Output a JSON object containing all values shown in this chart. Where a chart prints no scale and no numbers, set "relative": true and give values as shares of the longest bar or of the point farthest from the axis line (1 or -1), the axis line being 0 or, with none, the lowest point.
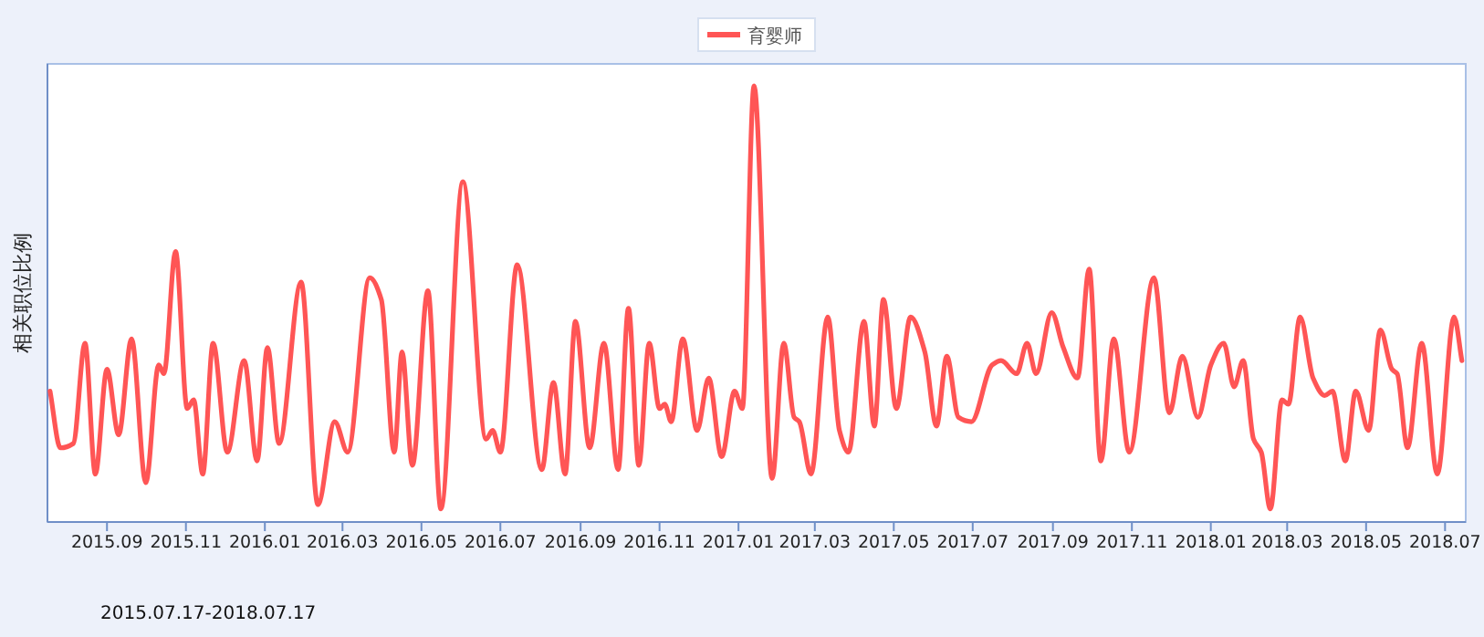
{
  "chart_data": {
    "type": "line",
    "relative": true,
    "ylabel": "相关职位比例",
    "annotations": [
      "2015.07.17-2018.07.17"
    ],
    "legend": "top",
    "marker": "none",
    "line_style": "solid",
    "grid": false,
    "xlim": [
      "2015-07-17",
      "2018-07-17"
    ],
    "xticks": [
      {
        "value": "2015-09",
        "label": "2015.09"
      },
      {
        "value": "2015-11",
        "label": "2015.11"
      },
      {
        "value": "2016-01",
        "label": "2016.01"
      },
      {
        "value": "2016-03",
        "label": "2016.03"
      },
      {
        "value": "2016-05",
        "label": "2016.05"
      },
      {
        "value": "2016-07",
        "label": "2016.07"
      },
      {
        "value": "2016-09",
        "label": "2016.09"
      },
      {
        "value": "2016-11",
        "label": "2016.11"
      },
      {
        "value": "2017-01",
        "label": "2017.01"
      },
      {
        "value": "2017-03",
        "label": "2017.03"
      },
      {
        "value": "2017-05",
        "label": "2017.05"
      },
      {
        "value": "2017-07",
        "label": "2017.07"
      },
      {
        "value": "2017-09",
        "label": "2017.09"
      },
      {
        "value": "2017-11",
        "label": "2017.11"
      },
      {
        "value": "2018-01",
        "label": "2018.01"
      },
      {
        "value": "2018-03",
        "label": "2018.03"
      },
      {
        "value": "2018-05",
        "label": "2018.05"
      },
      {
        "value": "2018-07",
        "label": "2018.07"
      }
    ],
    "series": [
      {
        "name": "育婴师",
        "color": "#ff5555",
        "x": [
          "2015-07-19",
          "2015-07-27",
          "2015-08-06",
          "2015-08-15",
          "2015-08-23",
          "2015-09-01",
          "2015-09-10",
          "2015-09-20",
          "2015-10-01",
          "2015-10-11",
          "2015-10-15",
          "2015-10-24",
          "2015-11-02",
          "2015-11-07",
          "2015-11-14",
          "2015-11-22",
          "2015-12-03",
          "2015-12-16",
          "2015-12-26",
          "2016-01-03",
          "2016-01-12",
          "2016-01-29",
          "2016-02-11",
          "2016-02-24",
          "2016-03-05",
          "2016-03-22",
          "2016-03-31",
          "2016-04-10",
          "2016-04-16",
          "2016-04-24",
          "2016-05-06",
          "2016-05-16",
          "2016-06-02",
          "2016-06-20",
          "2016-06-25",
          "2016-07-01",
          "2016-07-14",
          "2016-08-02",
          "2016-08-11",
          "2016-08-20",
          "2016-08-28",
          "2016-09-08",
          "2016-09-19",
          "2016-09-30",
          "2016-10-08",
          "2016-10-16",
          "2016-10-24",
          "2016-11-01",
          "2016-11-05",
          "2016-11-10",
          "2016-11-19",
          "2016-11-30",
          "2016-12-09",
          "2016-12-19",
          "2016-12-29",
          "2017-01-04",
          "2017-01-13",
          "2017-01-27",
          "2017-02-05",
          "2017-02-13",
          "2017-02-17",
          "2017-02-26",
          "2017-03-11",
          "2017-03-20",
          "2017-03-27",
          "2017-04-08",
          "2017-04-16",
          "2017-04-23",
          "2017-05-03",
          "2017-05-14",
          "2017-05-25",
          "2017-06-03",
          "2017-06-11",
          "2017-06-20",
          "2017-06-30",
          "2017-07-16",
          "2017-07-23",
          "2017-08-04",
          "2017-08-12",
          "2017-08-19",
          "2017-08-31",
          "2017-09-09",
          "2017-09-20",
          "2017-09-29",
          "2017-10-08",
          "2017-10-18",
          "2017-10-30",
          "2017-11-18",
          "2017-11-30",
          "2017-12-10",
          "2017-12-22",
          "2018-01-01",
          "2018-01-11",
          "2018-01-19",
          "2018-01-26",
          "2018-02-03",
          "2018-02-09",
          "2018-02-16",
          "2018-02-25",
          "2018-03-02",
          "2018-03-11",
          "2018-03-21",
          "2018-03-30",
          "2018-04-05",
          "2018-04-15",
          "2018-04-23",
          "2018-05-03",
          "2018-05-12",
          "2018-05-21",
          "2018-05-25",
          "2018-06-02",
          "2018-06-13",
          "2018-06-25",
          "2018-07-08",
          "2018-07-14"
        ],
        "values": [
          0.3,
          0.17,
          0.18,
          0.41,
          0.11,
          0.35,
          0.2,
          0.42,
          0.09,
          0.36,
          0.34,
          0.62,
          0.26,
          0.28,
          0.11,
          0.41,
          0.16,
          0.37,
          0.14,
          0.4,
          0.18,
          0.55,
          0.04,
          0.23,
          0.16,
          0.56,
          0.51,
          0.16,
          0.39,
          0.13,
          0.53,
          0.03,
          0.78,
          0.19,
          0.21,
          0.16,
          0.59,
          0.12,
          0.32,
          0.11,
          0.46,
          0.17,
          0.41,
          0.12,
          0.49,
          0.13,
          0.41,
          0.26,
          0.27,
          0.23,
          0.42,
          0.21,
          0.33,
          0.15,
          0.3,
          0.26,
          1.0,
          0.1,
          0.41,
          0.24,
          0.23,
          0.11,
          0.47,
          0.21,
          0.16,
          0.46,
          0.22,
          0.51,
          0.26,
          0.47,
          0.39,
          0.22,
          0.38,
          0.24,
          0.23,
          0.36,
          0.37,
          0.34,
          0.41,
          0.34,
          0.48,
          0.4,
          0.33,
          0.58,
          0.14,
          0.42,
          0.16,
          0.56,
          0.25,
          0.38,
          0.24,
          0.36,
          0.41,
          0.31,
          0.37,
          0.19,
          0.16,
          0.03,
          0.28,
          0.27,
          0.47,
          0.33,
          0.29,
          0.3,
          0.14,
          0.3,
          0.21,
          0.44,
          0.35,
          0.34,
          0.17,
          0.41,
          0.11,
          0.47,
          0.37
        ]
      }
    ]
  }
}
